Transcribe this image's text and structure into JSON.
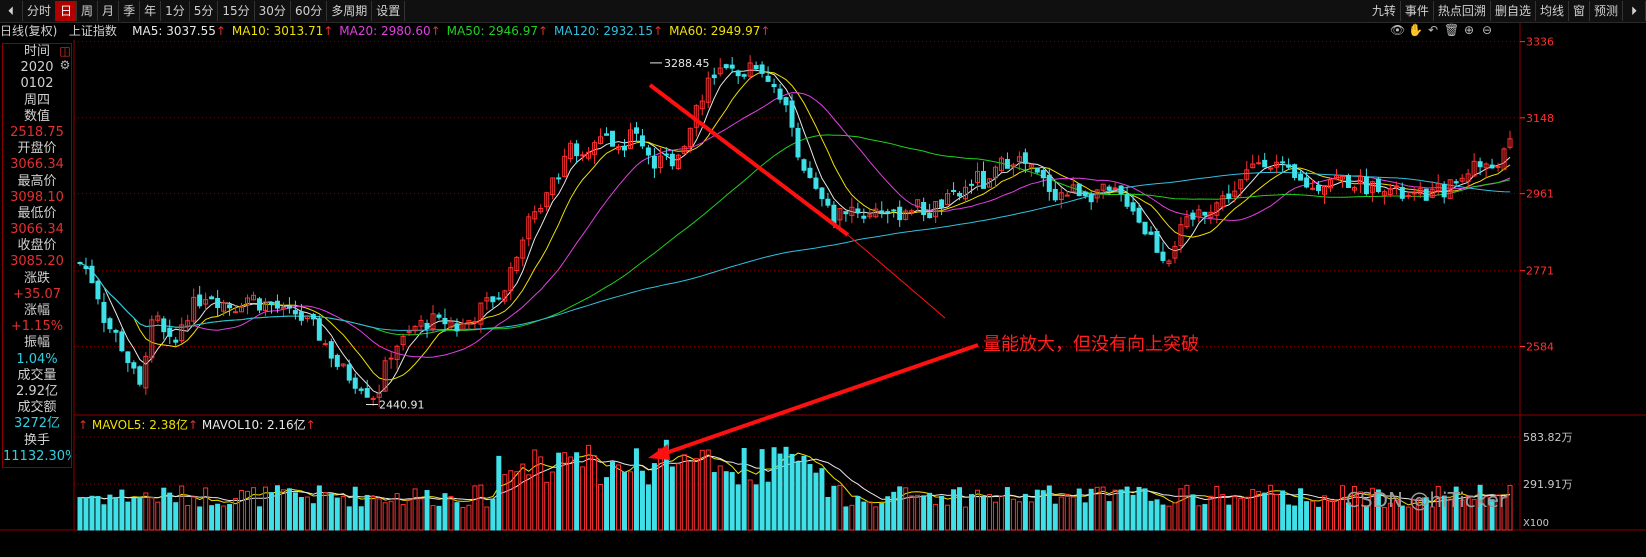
{
  "toolbar": {
    "left_items": [
      "分时",
      "日",
      "周",
      "月",
      "季",
      "年",
      "1分",
      "5分",
      "15分",
      "30分",
      "60分",
      "多周期",
      "设置"
    ],
    "active": "日",
    "right_items": [
      "九转",
      "事件",
      "热点回溯",
      "删自选",
      "均线",
      "窗",
      "预测"
    ]
  },
  "infobar": {
    "title": "日线(复权)",
    "index_name": "上证指数",
    "ma": [
      {
        "label": "MA5: 3037.55",
        "color": "#e8e8e8"
      },
      {
        "label": "MA10: 3013.71",
        "color": "#f0e000"
      },
      {
        "label": "MA20: 2980.60",
        "color": "#e040e0"
      },
      {
        "label": "MA50: 2946.97",
        "color": "#20d020"
      },
      {
        "label": "MA120: 2932.15",
        "color": "#30c0e0"
      },
      {
        "label": "MA60: 2949.97",
        "color": "#f0e000"
      }
    ]
  },
  "sidebar": [
    {
      "label": "时间",
      "value": ""
    },
    {
      "label": "",
      "value": "2020",
      "cls": "white"
    },
    {
      "label": "",
      "value": "0102",
      "cls": "white"
    },
    {
      "label": "",
      "value": "周四",
      "cls": "white"
    },
    {
      "label": "数值",
      "value": ""
    },
    {
      "label": "",
      "value": "2518.75",
      "cls": ""
    },
    {
      "label": "开盘价",
      "value": ""
    },
    {
      "label": "",
      "value": "3066.34",
      "cls": ""
    },
    {
      "label": "最高价",
      "value": ""
    },
    {
      "label": "",
      "value": "3098.10",
      "cls": ""
    },
    {
      "label": "最低价",
      "value": ""
    },
    {
      "label": "",
      "value": "3066.34",
      "cls": ""
    },
    {
      "label": "收盘价",
      "value": ""
    },
    {
      "label": "",
      "value": "3085.20",
      "cls": ""
    },
    {
      "label": "涨跌",
      "value": ""
    },
    {
      "label": "",
      "value": "+35.07",
      "cls": ""
    },
    {
      "label": "涨幅",
      "value": ""
    },
    {
      "label": "",
      "value": "+1.15%",
      "cls": ""
    },
    {
      "label": "振幅",
      "value": ""
    },
    {
      "label": "",
      "value": "1.04%",
      "cls": "cyan"
    },
    {
      "label": "成交量",
      "value": ""
    },
    {
      "label": "",
      "value": "2.92亿",
      "cls": "white"
    },
    {
      "label": "成交额",
      "value": ""
    },
    {
      "label": "",
      "value": "3272亿",
      "cls": "cyan"
    },
    {
      "label": "换手",
      "value": ""
    },
    {
      "label": "",
      "value": "11132.30%",
      "cls": "cyan"
    }
  ],
  "volume_info": {
    "mavol5": "MAVOL5: 2.38亿",
    "mavol10": "MAVOL10: 2.16亿"
  },
  "annotation": "量能放大，但没有向上突破",
  "watermark": "CSDN @hiTicker",
  "colors": {
    "up": "#ff3030",
    "down": "#40e0e8",
    "grid": "#8b0000",
    "axis": "#ff3030"
  },
  "chart_data": {
    "type": "candlestick",
    "price_axis_ticks": [
      3336,
      3148,
      2961,
      2771,
      2584
    ],
    "volume_axis_ticks": [
      "583.82万",
      "291.91万"
    ],
    "volume_unit": "X100",
    "price_range": [
      2420,
      3340
    ],
    "annotated_high": "3288.45",
    "annotated_low": "2440.91",
    "price_path": [
      [
        0,
        2790
      ],
      [
        6,
        2770
      ],
      [
        12,
        2720
      ],
      [
        18,
        2640
      ],
      [
        24,
        2620
      ],
      [
        30,
        2580
      ],
      [
        36,
        2530
      ],
      [
        42,
        2480
      ],
      [
        48,
        2620
      ],
      [
        54,
        2650
      ],
      [
        60,
        2600
      ],
      [
        66,
        2580
      ],
      [
        72,
        2650
      ],
      [
        78,
        2680
      ],
      [
        84,
        2700
      ],
      [
        90,
        2720
      ],
      [
        96,
        2700
      ],
      [
        102,
        2690
      ],
      [
        108,
        2680
      ],
      [
        114,
        2700
      ],
      [
        120,
        2710
      ],
      [
        126,
        2690
      ],
      [
        132,
        2690
      ],
      [
        138,
        2680
      ],
      [
        144,
        2660
      ],
      [
        150,
        2670
      ],
      [
        156,
        2650
      ],
      [
        162,
        2640
      ],
      [
        168,
        2610
      ],
      [
        174,
        2580
      ],
      [
        180,
        2540
      ],
      [
        186,
        2520
      ],
      [
        192,
        2500
      ],
      [
        198,
        2490
      ],
      [
        204,
        2460
      ],
      [
        210,
        2480
      ],
      [
        216,
        2560
      ],
      [
        222,
        2590
      ],
      [
        228,
        2600
      ],
      [
        234,
        2630
      ],
      [
        240,
        2640
      ],
      [
        246,
        2650
      ],
      [
        252,
        2640
      ],
      [
        258,
        2650
      ],
      [
        264,
        2630
      ],
      [
        270,
        2640
      ],
      [
        276,
        2660
      ],
      [
        282,
        2680
      ],
      [
        288,
        2700
      ],
      [
        294,
        2710
      ],
      [
        300,
        2760
      ],
      [
        306,
        2820
      ],
      [
        312,
        2880
      ],
      [
        318,
        2900
      ],
      [
        324,
        2950
      ],
      [
        330,
        3000
      ],
      [
        336,
        3020
      ],
      [
        342,
        3080
      ],
      [
        348,
        3040
      ],
      [
        354,
        3060
      ],
      [
        360,
        3080
      ],
      [
        366,
        3100
      ],
      [
        372,
        3090
      ],
      [
        378,
        3070
      ],
      [
        384,
        3100
      ],
      [
        390,
        3110
      ],
      [
        396,
        3080
      ],
      [
        402,
        3030
      ],
      [
        408,
        3050
      ],
      [
        414,
        3040
      ],
      [
        420,
        3070
      ],
      [
        426,
        3110
      ],
      [
        432,
        3180
      ],
      [
        438,
        3220
      ],
      [
        444,
        3250
      ],
      [
        450,
        3270
      ],
      [
        456,
        3260
      ],
      [
        462,
        3240
      ],
      [
        468,
        3280
      ],
      [
        474,
        3285
      ],
      [
        480,
        3260
      ],
      [
        486,
        3230
      ],
      [
        492,
        3200
      ],
      [
        498,
        3130
      ],
      [
        504,
        3060
      ],
      [
        510,
        3000
      ],
      [
        516,
        2960
      ],
      [
        522,
        2930
      ],
      [
        528,
        2900
      ],
      [
        534,
        2920
      ],
      [
        540,
        2930
      ],
      [
        546,
        2920
      ],
      [
        552,
        2900
      ],
      [
        558,
        2930
      ],
      [
        564,
        2920
      ],
      [
        570,
        2900
      ],
      [
        576,
        2920
      ],
      [
        582,
        2930
      ],
      [
        588,
        2930
      ],
      [
        594,
        2910
      ],
      [
        600,
        2930
      ],
      [
        606,
        2940
      ],
      [
        612,
        2950
      ],
      [
        618,
        2960
      ],
      [
        624,
        2990
      ],
      [
        630,
        3000
      ],
      [
        636,
        2970
      ],
      [
        642,
        3020
      ],
      [
        648,
        3040
      ],
      [
        654,
        3050
      ],
      [
        660,
        3040
      ],
      [
        666,
        3020
      ],
      [
        672,
        3000
      ],
      [
        678,
        2980
      ],
      [
        684,
        2960
      ],
      [
        690,
        2960
      ],
      [
        696,
        2970
      ],
      [
        702,
        2970
      ],
      [
        708,
        2960
      ],
      [
        714,
        2970
      ],
      [
        720,
        2960
      ],
      [
        726,
        2960
      ],
      [
        732,
        2950
      ],
      [
        738,
        2930
      ],
      [
        744,
        2880
      ],
      [
        750,
        2860
      ],
      [
        756,
        2820
      ],
      [
        762,
        2800
      ],
      [
        768,
        2850
      ],
      [
        774,
        2880
      ],
      [
        780,
        2900
      ],
      [
        786,
        2920
      ],
      [
        792,
        2930
      ],
      [
        798,
        2940
      ],
      [
        804,
        2960
      ],
      [
        810,
        2970
      ],
      [
        816,
        3000
      ],
      [
        822,
        3030
      ],
      [
        828,
        3050
      ],
      [
        834,
        3040
      ],
      [
        840,
        3030
      ],
      [
        846,
        3010
      ],
      [
        852,
        2990
      ],
      [
        858,
        2990
      ],
      [
        864,
        2970
      ],
      [
        870,
        2990
      ],
      [
        876,
        3000
      ],
      [
        882,
        3000
      ],
      [
        888,
        2990
      ],
      [
        894,
        2990
      ],
      [
        900,
        2980
      ],
      [
        906,
        2980
      ],
      [
        912,
        2990
      ],
      [
        918,
        2970
      ],
      [
        924,
        2960
      ],
      [
        930,
        2950
      ],
      [
        936,
        2950
      ],
      [
        942,
        2960
      ],
      [
        948,
        2960
      ],
      [
        954,
        2970
      ],
      [
        960,
        2980
      ],
      [
        966,
        2990
      ],
      [
        972,
        3020
      ],
      [
        978,
        3040
      ],
      [
        984,
        3020
      ],
      [
        990,
        3030
      ],
      [
        996,
        3050
      ],
      [
        1002,
        3080
      ]
    ]
  }
}
